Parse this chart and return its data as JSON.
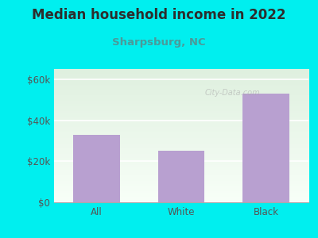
{
  "title": "Median household income in 2022",
  "subtitle": "Sharpsburg, NC",
  "categories": [
    "All",
    "White",
    "Black"
  ],
  "values": [
    33000,
    25000,
    53000
  ],
  "bar_color": "#b8a0d0",
  "outer_bg": "#00efef",
  "plot_bg_top": "#dff0df",
  "plot_bg_bottom": "#f8fff8",
  "title_color": "#2d2d2d",
  "subtitle_color": "#4a9a9a",
  "axis_color": "#555555",
  "yticks": [
    0,
    20000,
    40000,
    60000
  ],
  "ytick_labels": [
    "$0",
    "$20k",
    "$40k",
    "$60k"
  ],
  "ylim": [
    0,
    65000
  ],
  "watermark": "City-Data.com",
  "title_fontsize": 12,
  "subtitle_fontsize": 9.5,
  "tick_fontsize": 8.5
}
